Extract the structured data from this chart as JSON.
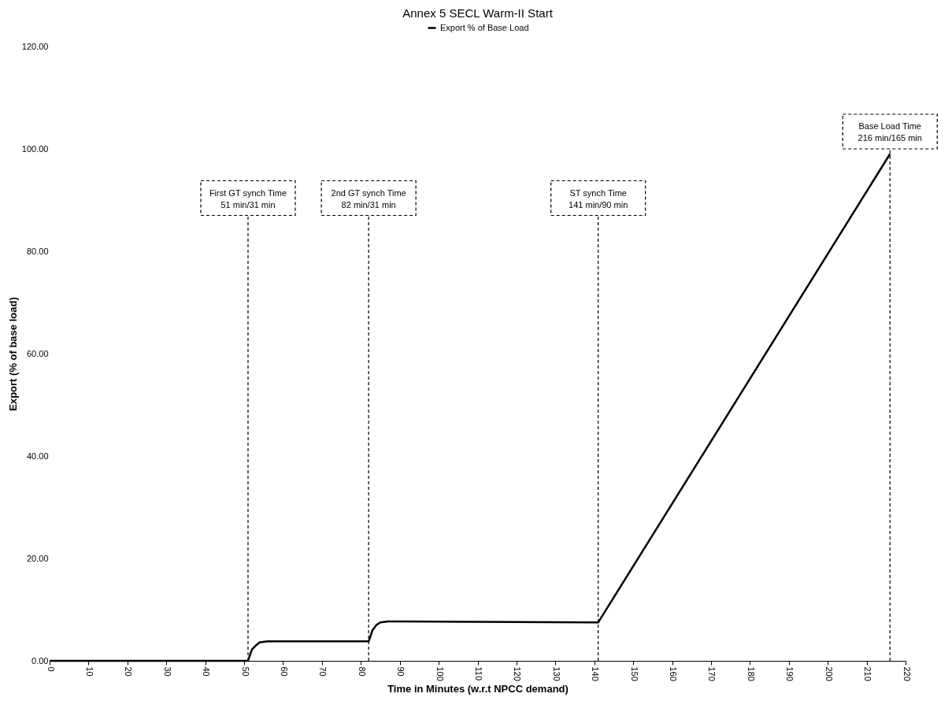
{
  "chart_data": {
    "type": "line",
    "title": "Annex 5 SECL Warm-II Start",
    "xlabel": "Time in Minutes (w.r.t NPCC demand)",
    "ylabel": "Export (% of base load)",
    "series": [
      {
        "name": "Export % of Base Load",
        "color": "#000000",
        "x": [
          0,
          51,
          52,
          53,
          54,
          56,
          82,
          83,
          84,
          85,
          87,
          141,
          216
        ],
        "values": [
          0,
          0,
          2.2,
          3.0,
          3.6,
          3.8,
          3.8,
          6.0,
          7.0,
          7.5,
          7.7,
          7.5,
          99
        ]
      }
    ],
    "xlim": [
      0,
      220
    ],
    "xticks": [
      0,
      10,
      20,
      30,
      40,
      50,
      60,
      70,
      80,
      90,
      100,
      110,
      120,
      130,
      140,
      150,
      160,
      170,
      180,
      190,
      200,
      210,
      220
    ],
    "ylim": [
      0,
      120
    ],
    "yticks": [
      {
        "value": 0,
        "label": "0.00"
      },
      {
        "value": 20,
        "label": "20.00"
      },
      {
        "value": 40,
        "label": "40.00"
      },
      {
        "value": 60,
        "label": "60.00"
      },
      {
        "value": 80,
        "label": "80.00"
      },
      {
        "value": 100,
        "label": "100.00"
      },
      {
        "value": 120,
        "label": "120.00"
      }
    ],
    "ref_lines": [
      {
        "axis": "x",
        "value": 51,
        "label": "First GT synch Time\n51 min/31 min",
        "line_style": "dashed",
        "color": "#000000"
      },
      {
        "axis": "x",
        "value": 82,
        "label": "2nd GT synch Time\n82 min/31 min",
        "line_style": "dashed",
        "color": "#000000"
      },
      {
        "axis": "x",
        "value": 141,
        "label": "ST synch Time\n141 min/90 min",
        "line_style": "dashed",
        "color": "#000000"
      },
      {
        "axis": "x",
        "value": 216,
        "label": "Base Load Time\n216 min/165 min",
        "line_style": "dashed",
        "color": "#000000"
      }
    ],
    "grid": false,
    "legend": "top",
    "marker": "none",
    "line_style": "solid"
  }
}
